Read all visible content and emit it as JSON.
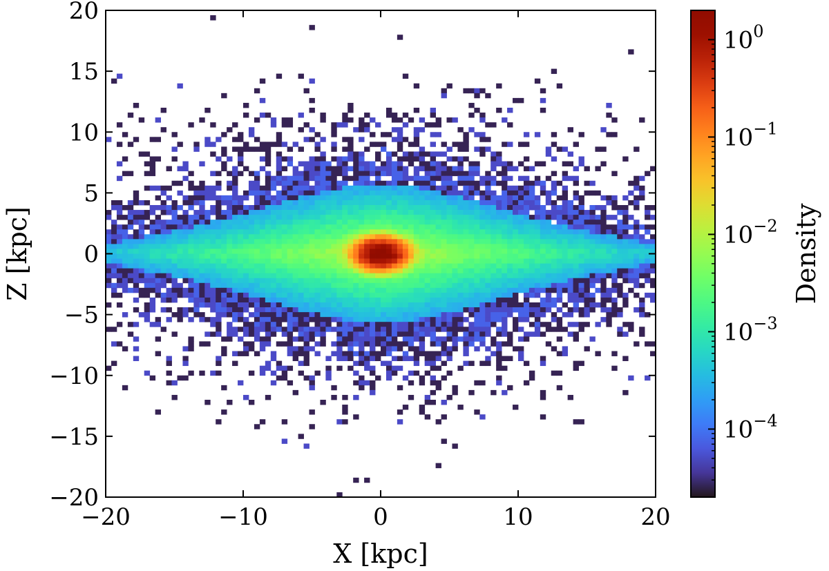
{
  "chart_data": {
    "type": "heatmap",
    "title": "",
    "xlabel": "X [kpc]",
    "ylabel": "Z [kpc]",
    "xlim": [
      -20,
      20
    ],
    "ylim": [
      -20,
      20
    ],
    "xticks": [
      -20,
      -10,
      0,
      10,
      20
    ],
    "yticks": [
      -20,
      -15,
      -10,
      -5,
      0,
      5,
      10,
      15,
      20
    ],
    "xtick_labels": [
      "−20",
      "−10",
      "0",
      "10",
      "20"
    ],
    "ytick_labels": [
      "−20",
      "−15",
      "−10",
      "−5",
      "0",
      "5",
      "10",
      "15",
      "20"
    ],
    "bins": 100,
    "grid": false,
    "colormap": "turbo",
    "empty_bin_color": "#ffffff",
    "colorbar": {
      "label": "Density",
      "scale": "log",
      "vmin": 2e-05,
      "vmax": 2.0,
      "ticks": [
        {
          "value": 1,
          "base": "10",
          "exp": "0"
        },
        {
          "value": 0.1,
          "base": "10",
          "exp": "−1"
        },
        {
          "value": 0.01,
          "base": "10",
          "exp": "−2"
        },
        {
          "value": 0.001,
          "base": "10",
          "exp": "−3"
        },
        {
          "value": 0.0001,
          "base": "10",
          "exp": "−4"
        }
      ]
    },
    "density_profile": {
      "description": "Edge-on disk galaxy: bright compact bulge at origin, thin disk along Z=0, diffuse halo with sparse bins at large |Z|",
      "peak_density": 2.0,
      "bulge_scale_kpc": 0.8,
      "disk_scale_length_kpc": 6.0,
      "disk_scale_height_kpc": 1.2,
      "halo_scale_kpc": 7.0
    }
  }
}
